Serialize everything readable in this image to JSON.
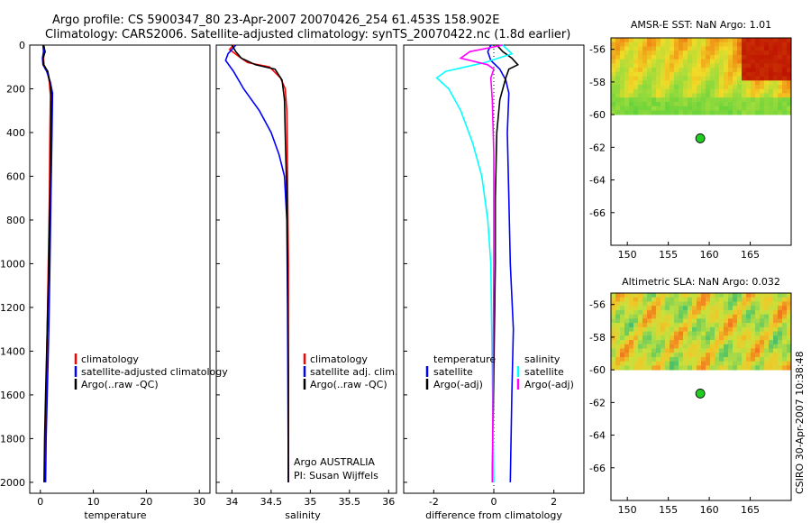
{
  "figure": {
    "title_line1": "Argo profile: CS 5900347_80 23-Apr-2007 20070426_254 61.453S 158.902E",
    "title_line2": "Climatology: CARS2006. Satellite-adjusted climatology: synTS_20070422.nc (1.8d earlier)",
    "side_stamp": "CSIRO 30-Apr-2007 10:38:48"
  },
  "colors": {
    "climatology": "#ff0000",
    "satellite": "#0000ff",
    "argo": "#000000",
    "sal_satellite": "#00ffff",
    "sal_argo": "#ff00ff",
    "float_marker": "#22cc22"
  },
  "chart_data": [
    {
      "id": "temperature",
      "type": "line",
      "xlabel": "temperature",
      "xlim": [
        -2,
        32
      ],
      "xticks": [
        "0",
        "10",
        "20",
        "30"
      ],
      "ylim": [
        2050,
        0
      ],
      "yticks": [
        "0",
        "200",
        "400",
        "600",
        "800",
        "1000",
        "1200",
        "1400",
        "1600",
        "1800",
        "2000"
      ],
      "legend": [
        "climatology",
        "satellite-adjusted climatology",
        "Argo(..raw -QC)"
      ],
      "series": [
        {
          "name": "climatology",
          "color": "climatology",
          "points": [
            [
              0.7,
              0
            ],
            [
              0.8,
              30
            ],
            [
              0.6,
              60
            ],
            [
              0.7,
              90
            ],
            [
              1.3,
              120
            ],
            [
              1.7,
              170
            ],
            [
              1.9,
              230
            ],
            [
              1.8,
              400
            ],
            [
              1.7,
              700
            ],
            [
              1.5,
              1000
            ],
            [
              1.3,
              1300
            ],
            [
              1.1,
              1600
            ],
            [
              0.9,
              1800
            ],
            [
              0.8,
              2000
            ]
          ]
        },
        {
          "name": "satellite-adjusted climatology",
          "color": "satellite",
          "points": [
            [
              0.5,
              0
            ],
            [
              0.6,
              30
            ],
            [
              0.4,
              60
            ],
            [
              0.5,
              90
            ],
            [
              1.2,
              120
            ],
            [
              1.9,
              170
            ],
            [
              2.3,
              220
            ],
            [
              2.2,
              400
            ],
            [
              2.0,
              700
            ],
            [
              1.8,
              1000
            ],
            [
              1.6,
              1300
            ],
            [
              1.3,
              1600
            ],
            [
              1.1,
              1800
            ],
            [
              1.0,
              2000
            ]
          ]
        },
        {
          "name": "Argo(..raw -QC)",
          "color": "argo",
          "points": [
            [
              0.6,
              0
            ],
            [
              0.9,
              30
            ],
            [
              0.5,
              60
            ],
            [
              0.6,
              90
            ],
            [
              1.4,
              120
            ],
            [
              1.8,
              170
            ],
            [
              2.1,
              230
            ],
            [
              2.0,
              400
            ],
            [
              1.8,
              700
            ],
            [
              1.6,
              1000
            ],
            [
              1.3,
              1300
            ],
            [
              1.0,
              1600
            ],
            [
              0.8,
              1800
            ],
            [
              0.7,
              2000
            ]
          ]
        }
      ]
    },
    {
      "id": "salinity",
      "type": "line",
      "xlabel": "salinity",
      "xlim": [
        33.8,
        36.1
      ],
      "xticks": [
        "34",
        "34.5",
        "35",
        "35.5",
        "36"
      ],
      "ylim": [
        2050,
        0
      ],
      "legend": [
        "climatology",
        "satellite adj. clim.",
        "Argo(..raw -QC)"
      ],
      "annotation_line1": "Argo AUSTRALIA",
      "annotation_line2": "PI: Susan Wijffels",
      "series": [
        {
          "name": "climatology",
          "color": "climatology",
          "points": [
            [
              34.02,
              0
            ],
            [
              33.97,
              20
            ],
            [
              34.08,
              50
            ],
            [
              34.2,
              80
            ],
            [
              34.48,
              100
            ],
            [
              34.62,
              150
            ],
            [
              34.68,
              200
            ],
            [
              34.7,
              300
            ],
            [
              34.71,
              600
            ],
            [
              34.72,
              1000
            ],
            [
              34.72,
              1500
            ],
            [
              34.72,
              2000
            ]
          ]
        },
        {
          "name": "satellite adj. clim.",
          "color": "satellite",
          "points": [
            [
              34.05,
              0
            ],
            [
              33.95,
              40
            ],
            [
              33.92,
              70
            ],
            [
              34.02,
              120
            ],
            [
              34.15,
              200
            ],
            [
              34.35,
              300
            ],
            [
              34.5,
              400
            ],
            [
              34.6,
              500
            ],
            [
              34.67,
              600
            ],
            [
              34.7,
              800
            ],
            [
              34.71,
              1200
            ],
            [
              34.72,
              2000
            ]
          ]
        },
        {
          "name": "Argo(..raw -QC)",
          "color": "argo",
          "points": [
            [
              34.0,
              0
            ],
            [
              34.05,
              30
            ],
            [
              34.12,
              60
            ],
            [
              34.3,
              90
            ],
            [
              34.55,
              110
            ],
            [
              34.64,
              160
            ],
            [
              34.67,
              250
            ],
            [
              34.68,
              400
            ],
            [
              34.7,
              700
            ],
            [
              34.71,
              1000
            ],
            [
              34.72,
              1500
            ],
            [
              34.72,
              2000
            ]
          ]
        }
      ]
    },
    {
      "id": "difference",
      "type": "line",
      "xlabel": "difference from climatology",
      "xlim": [
        -3,
        3
      ],
      "xticks": [
        "-2",
        "0",
        "2"
      ],
      "ylim": [
        2050,
        0
      ],
      "legend_temperature_title": "temperature",
      "legend_salinity_title": "salinity",
      "legend_temperature": [
        "satellite",
        "Argo(-adj)"
      ],
      "legend_salinity": [
        "satellite",
        "Argo(-adj)"
      ],
      "series": [
        {
          "name": "temperature satellite",
          "color": "satellite",
          "points": [
            [
              -0.1,
              0
            ],
            [
              -0.2,
              30
            ],
            [
              -0.1,
              70
            ],
            [
              0.2,
              110
            ],
            [
              0.4,
              160
            ],
            [
              0.5,
              220
            ],
            [
              0.45,
              400
            ],
            [
              0.5,
              700
            ],
            [
              0.55,
              1000
            ],
            [
              0.65,
              1300
            ],
            [
              0.6,
              1600
            ],
            [
              0.55,
              2000
            ]
          ]
        },
        {
          "name": "temperature Argo(-adj)",
          "color": "argo",
          "points": [
            [
              0.1,
              0
            ],
            [
              0.3,
              30
            ],
            [
              0.6,
              60
            ],
            [
              0.8,
              90
            ],
            [
              0.5,
              110
            ],
            [
              0.4,
              150
            ],
            [
              0.2,
              250
            ],
            [
              0.1,
              400
            ],
            [
              0.05,
              700
            ],
            [
              0.05,
              1000
            ],
            [
              0.0,
              1500
            ],
            [
              -0.05,
              2000
            ]
          ]
        },
        {
          "name": "salinity satellite",
          "color": "sal_satellite",
          "points": [
            [
              0.3,
              0
            ],
            [
              0.6,
              40
            ],
            [
              -0.3,
              80
            ],
            [
              -1.6,
              120
            ],
            [
              -1.9,
              150
            ],
            [
              -1.5,
              200
            ],
            [
              -1.1,
              300
            ],
            [
              -0.7,
              450
            ],
            [
              -0.4,
              600
            ],
            [
              -0.2,
              800
            ],
            [
              -0.1,
              1000
            ],
            [
              -0.05,
              1500
            ],
            [
              0.0,
              2000
            ]
          ]
        },
        {
          "name": "salinity Argo(-adj)",
          "color": "sal_argo",
          "points": [
            [
              0.3,
              0
            ],
            [
              -0.8,
              30
            ],
            [
              -1.1,
              60
            ],
            [
              -0.2,
              90
            ],
            [
              0.0,
              110
            ],
            [
              -0.1,
              150
            ],
            [
              -0.05,
              250
            ],
            [
              0.0,
              500
            ],
            [
              0.0,
              1000
            ],
            [
              -0.02,
              1500
            ],
            [
              -0.05,
              2000
            ]
          ]
        }
      ]
    },
    {
      "id": "amsr_sst",
      "type": "heatmap",
      "title": "AMSR-E SST: NaN Argo: 1.01",
      "xlim": [
        148,
        170
      ],
      "xticks": [
        "150",
        "155",
        "160",
        "165"
      ],
      "ylim": [
        -68,
        -55.3
      ],
      "yticks": [
        "-56",
        "-58",
        "-60",
        "-62",
        "-64",
        "-66"
      ],
      "data_lat_range": [
        -60,
        -55.3
      ],
      "marker": {
        "lon": 158.902,
        "lat": -61.453
      }
    },
    {
      "id": "altimetric_sla",
      "type": "heatmap",
      "title": "Altimetric SLA: NaN Argo: 0.032",
      "xlim": [
        148,
        170
      ],
      "xticks": [
        "150",
        "155",
        "160",
        "165"
      ],
      "ylim": [
        -68,
        -55.3
      ],
      "yticks": [
        "-56",
        "-58",
        "-60",
        "-62",
        "-64",
        "-66"
      ],
      "data_lat_range": [
        -60,
        -55.3
      ],
      "marker": {
        "lon": 158.902,
        "lat": -61.453
      }
    }
  ]
}
